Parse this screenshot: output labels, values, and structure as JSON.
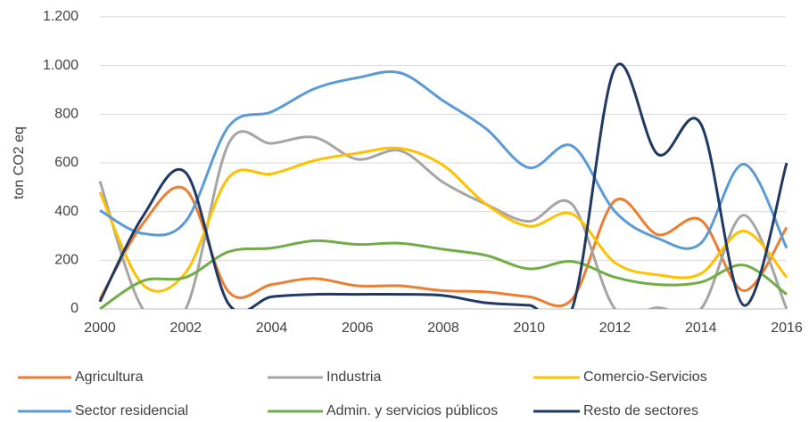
{
  "chart_data": {
    "type": "line",
    "y_label": "ton CO2 eq",
    "x": [
      2000,
      2001,
      2002,
      2003,
      2004,
      2005,
      2006,
      2007,
      2008,
      2009,
      2010,
      2011,
      2012,
      2013,
      2014,
      2015,
      2016
    ],
    "xlim": [
      2000,
      2016
    ],
    "xticks": [
      2000,
      2002,
      2004,
      2006,
      2008,
      2010,
      2012,
      2014,
      2016
    ],
    "ylim": [
      0,
      1200
    ],
    "yticks": [
      0,
      200,
      400,
      600,
      800,
      {
        "value": 1000,
        "label": "1.000"
      },
      {
        "value": 1200,
        "label": "1.200"
      }
    ],
    "grid": true,
    "smooth": true,
    "series": [
      {
        "name": "Agricultura",
        "color": "#ed7d31",
        "values": [
          40,
          350,
          490,
          70,
          100,
          125,
          95,
          95,
          75,
          70,
          50,
          40,
          445,
          305,
          365,
          75,
          335
        ]
      },
      {
        "name": "Industria",
        "color": "#a5a5a5",
        "values": [
          525,
          0,
          0,
          680,
          680,
          705,
          615,
          650,
          520,
          430,
          360,
          430,
          0,
          5,
          0,
          385,
          0
        ]
      },
      {
        "name": "Comercio-Servicios",
        "color": "#ffc000",
        "values": [
          480,
          100,
          150,
          540,
          555,
          610,
          640,
          660,
          590,
          430,
          340,
          390,
          190,
          140,
          145,
          320,
          130
        ]
      },
      {
        "name": "Sector residencial",
        "color": "#5b9bd5",
        "values": [
          405,
          310,
          360,
          750,
          810,
          905,
          950,
          970,
          855,
          740,
          580,
          670,
          400,
          290,
          270,
          595,
          250
        ]
      },
      {
        "name": "Admin. y servicios públicos",
        "color": "#70ad47",
        "values": [
          0,
          115,
          130,
          235,
          250,
          280,
          265,
          270,
          245,
          220,
          165,
          195,
          130,
          100,
          110,
          180,
          60
        ]
      },
      {
        "name": "Resto de sectores",
        "color": "#1f3864",
        "values": [
          30,
          380,
          560,
          20,
          50,
          60,
          60,
          60,
          55,
          25,
          15,
          0,
          990,
          635,
          760,
          15,
          600
        ]
      }
    ]
  }
}
